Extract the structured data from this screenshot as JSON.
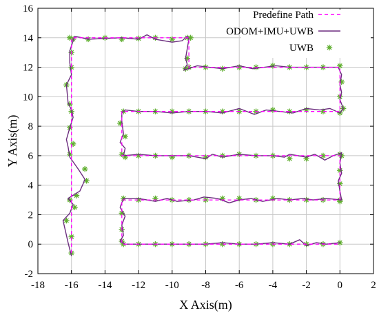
{
  "chart_data": {
    "type": "scatter",
    "xlabel": "X Axis(m)",
    "ylabel": "Y Axis(m)",
    "xlim": [
      -18,
      2
    ],
    "ylim": [
      -2,
      16
    ],
    "xticks": [
      "-18",
      "-16",
      "-14",
      "-12",
      "-10",
      "-8",
      "-6",
      "-4",
      "-2",
      "0",
      "2"
    ],
    "yticks": [
      "-2",
      "0",
      "2",
      "4",
      "6",
      "8",
      "10",
      "12",
      "14",
      "16"
    ],
    "grid": true,
    "legend_position": "top-right",
    "series": [
      {
        "name": "Predefine Path",
        "style": "dashed-line",
        "color": "#ff00ff",
        "points": [
          [
            -16,
            -0.6
          ],
          [
            -16,
            14
          ],
          [
            -9,
            14
          ],
          [
            -9,
            12
          ],
          [
            0,
            12
          ],
          [
            0,
            9
          ],
          [
            -13,
            9
          ],
          [
            -13,
            6
          ],
          [
            0,
            6
          ],
          [
            0,
            3
          ],
          [
            -13,
            3
          ],
          [
            -13,
            0
          ],
          [
            0,
            0
          ]
        ]
      },
      {
        "name": "ODOM+IMU+UWB",
        "style": "line",
        "color": "#6b2c7e",
        "points": [
          [
            -16,
            -0.8
          ],
          [
            -16.2,
            0.1
          ],
          [
            -16.3,
            0.6
          ],
          [
            -16.5,
            1.6
          ],
          [
            -16.1,
            2.1
          ],
          [
            -15.9,
            2.7
          ],
          [
            -16.2,
            3.1
          ],
          [
            -15.5,
            3.6
          ],
          [
            -15.3,
            4.1
          ],
          [
            -15.2,
            4.4
          ],
          [
            -15.6,
            5.1
          ],
          [
            -16.1,
            5.9
          ],
          [
            -16.2,
            6.6
          ],
          [
            -16.3,
            7.1
          ],
          [
            -16.1,
            7.9
          ],
          [
            -15.9,
            8.6
          ],
          [
            -16,
            9.1
          ],
          [
            -16.2,
            9.6
          ],
          [
            -16.3,
            10.8
          ],
          [
            -16,
            11.5
          ],
          [
            -16.1,
            12.3
          ],
          [
            -16.1,
            13.1
          ],
          [
            -15.9,
            13.8
          ],
          [
            -15.8,
            14.1
          ],
          [
            -15,
            13.9
          ],
          [
            -14,
            13.95
          ],
          [
            -13,
            14
          ],
          [
            -12,
            13.9
          ],
          [
            -11.5,
            14.2
          ],
          [
            -11,
            13.9
          ],
          [
            -10,
            13.7
          ],
          [
            -9.4,
            13.8
          ],
          [
            -9.1,
            14.1
          ],
          [
            -9,
            13.9
          ],
          [
            -9.2,
            12.6
          ],
          [
            -9.1,
            12.2
          ],
          [
            -9.3,
            11.8
          ],
          [
            -8.5,
            12.1
          ],
          [
            -7.8,
            12
          ],
          [
            -7,
            11.9
          ],
          [
            -6,
            12.1
          ],
          [
            -5.2,
            11.9
          ],
          [
            -4.5,
            12
          ],
          [
            -3.8,
            12.1
          ],
          [
            -3,
            12
          ],
          [
            -2,
            12
          ],
          [
            -1,
            12
          ],
          [
            -0.1,
            12
          ],
          [
            0.1,
            11.5
          ],
          [
            0,
            10.8
          ],
          [
            0.1,
            10.3
          ],
          [
            0,
            9.8
          ],
          [
            0.2,
            9.2
          ],
          [
            0,
            8.9
          ],
          [
            -0.6,
            9.2
          ],
          [
            -1.2,
            9.1
          ],
          [
            -2,
            9.2
          ],
          [
            -2.8,
            8.9
          ],
          [
            -3.6,
            9
          ],
          [
            -4.4,
            9.1
          ],
          [
            -5.1,
            8.8
          ],
          [
            -6,
            9.2
          ],
          [
            -7,
            8.9
          ],
          [
            -8,
            9
          ],
          [
            -9,
            9
          ],
          [
            -10,
            8.9
          ],
          [
            -11,
            9
          ],
          [
            -12,
            9
          ],
          [
            -12.8,
            9.1
          ],
          [
            -13,
            8.9
          ],
          [
            -13,
            8.3
          ],
          [
            -12.9,
            7.5
          ],
          [
            -13.1,
            6.9
          ],
          [
            -12.8,
            6.5
          ],
          [
            -12.9,
            6
          ],
          [
            -12,
            6.1
          ],
          [
            -11,
            6
          ],
          [
            -10,
            6
          ],
          [
            -9,
            6
          ],
          [
            -8,
            5.8
          ],
          [
            -7.6,
            6.1
          ],
          [
            -7,
            5.9
          ],
          [
            -6,
            6.1
          ],
          [
            -5,
            6
          ],
          [
            -4,
            6
          ],
          [
            -3.3,
            5.9
          ],
          [
            -3,
            6.1
          ],
          [
            -2,
            5.9
          ],
          [
            -1.5,
            6.1
          ],
          [
            -0.9,
            5.7
          ],
          [
            -0.4,
            6
          ],
          [
            0.1,
            6.2
          ],
          [
            0,
            5.5
          ],
          [
            0.1,
            4.8
          ],
          [
            -0.1,
            4.3
          ],
          [
            0,
            3.6
          ],
          [
            0.1,
            3
          ],
          [
            -0.8,
            3.1
          ],
          [
            -1.6,
            3
          ],
          [
            -2.2,
            3.1
          ],
          [
            -3,
            3
          ],
          [
            -3.7,
            3.1
          ],
          [
            -4.6,
            2.9
          ],
          [
            -5.3,
            3.1
          ],
          [
            -6,
            3
          ],
          [
            -6.6,
            2.8
          ],
          [
            -7.3,
            3.1
          ],
          [
            -8.1,
            3.2
          ],
          [
            -8.7,
            3
          ],
          [
            -9.7,
            2.9
          ],
          [
            -10.3,
            3.1
          ],
          [
            -11,
            2.9
          ],
          [
            -11.5,
            3
          ],
          [
            -12,
            3.1
          ],
          [
            -12.9,
            3.1
          ],
          [
            -13.1,
            2.5
          ],
          [
            -12.8,
            1.9
          ],
          [
            -13,
            1.3
          ],
          [
            -12.9,
            0.6
          ],
          [
            -13.1,
            0.2
          ],
          [
            -12.8,
            0
          ],
          [
            -12,
            0
          ],
          [
            -11,
            0
          ],
          [
            -10,
            0
          ],
          [
            -9,
            0
          ],
          [
            -8,
            0
          ],
          [
            -7,
            0.1
          ],
          [
            -6,
            0
          ],
          [
            -5,
            0
          ],
          [
            -4,
            0.1
          ],
          [
            -3,
            0
          ],
          [
            -2.4,
            0.3
          ],
          [
            -2,
            -0.1
          ],
          [
            -1.4,
            0.1
          ],
          [
            -0.8,
            0
          ],
          [
            0,
            0.1
          ]
        ]
      },
      {
        "name": "UWB",
        "style": "markers",
        "marker": "asterisk",
        "color": "#5fae2e",
        "points": [
          [
            -16,
            -0.6
          ],
          [
            -16,
            0.5
          ],
          [
            -16.3,
            1.6
          ],
          [
            -15.8,
            2.5
          ],
          [
            -15.7,
            3.3
          ],
          [
            -15.2,
            5.1
          ],
          [
            -15.1,
            4.3
          ],
          [
            -16.1,
            3
          ],
          [
            -16.1,
            6.1
          ],
          [
            -15.9,
            6.8
          ],
          [
            -16.1,
            7.9
          ],
          [
            -16,
            9
          ],
          [
            -16.1,
            9.5
          ],
          [
            -16.3,
            10.8
          ],
          [
            -16,
            12
          ],
          [
            -16,
            13
          ],
          [
            -16.1,
            14
          ],
          [
            -15.9,
            13.9
          ],
          [
            -15,
            13.9
          ],
          [
            -14,
            14
          ],
          [
            -13,
            13.9
          ],
          [
            -12,
            13.95
          ],
          [
            -11,
            14
          ],
          [
            -10,
            13.9
          ],
          [
            -9.1,
            14
          ],
          [
            -8.9,
            14
          ],
          [
            -9.1,
            12.6
          ],
          [
            -9.2,
            11.9
          ],
          [
            -9,
            12
          ],
          [
            -8,
            12
          ],
          [
            -7,
            11.9
          ],
          [
            -6,
            12
          ],
          [
            -5,
            12
          ],
          [
            -4,
            12.1
          ],
          [
            -3,
            12
          ],
          [
            -2,
            12
          ],
          [
            -1,
            12
          ],
          [
            0,
            12.1
          ],
          [
            0.1,
            11
          ],
          [
            0,
            10
          ],
          [
            0.2,
            9.2
          ],
          [
            0,
            8.9
          ],
          [
            -1,
            9
          ],
          [
            -2,
            9.1
          ],
          [
            -3,
            9
          ],
          [
            -4,
            9.1
          ],
          [
            -5,
            9
          ],
          [
            -6,
            9
          ],
          [
            -7,
            9
          ],
          [
            -8,
            9
          ],
          [
            -9,
            9
          ],
          [
            -10,
            9
          ],
          [
            -11,
            9
          ],
          [
            -12,
            9
          ],
          [
            -12.9,
            9
          ],
          [
            -13.1,
            8.2
          ],
          [
            -12.8,
            7.3
          ],
          [
            -13,
            6.1
          ],
          [
            -12.8,
            5.9
          ],
          [
            -12,
            6
          ],
          [
            -11,
            6
          ],
          [
            -10,
            5.9
          ],
          [
            -9,
            6
          ],
          [
            -8,
            5.9
          ],
          [
            -7,
            6
          ],
          [
            -6,
            6.1
          ],
          [
            -5,
            6
          ],
          [
            -4,
            6
          ],
          [
            -3,
            5.8
          ],
          [
            -2,
            5.8
          ],
          [
            -1,
            6
          ],
          [
            0,
            6.1
          ],
          [
            0.1,
            6
          ],
          [
            0,
            5
          ],
          [
            0,
            4.1
          ],
          [
            0,
            3
          ],
          [
            0,
            2.9
          ],
          [
            -1,
            3
          ],
          [
            -2,
            3
          ],
          [
            -3,
            3
          ],
          [
            -4,
            3.1
          ],
          [
            -5,
            3
          ],
          [
            -6,
            3.1
          ],
          [
            -7,
            3.1
          ],
          [
            -8,
            3
          ],
          [
            -9,
            3
          ],
          [
            -10,
            3
          ],
          [
            -11,
            3.1
          ],
          [
            -12,
            3
          ],
          [
            -12.9,
            3.1
          ],
          [
            -13,
            2.1
          ],
          [
            -13,
            1
          ],
          [
            -13,
            0.2
          ],
          [
            -12.9,
            0
          ],
          [
            -12,
            0
          ],
          [
            -11,
            0
          ],
          [
            -10,
            0
          ],
          [
            -9,
            0
          ],
          [
            -8,
            0
          ],
          [
            -7,
            0
          ],
          [
            -6,
            0
          ],
          [
            -5,
            0
          ],
          [
            -4,
            0
          ],
          [
            -3,
            0
          ],
          [
            -2,
            0
          ],
          [
            -1,
            0
          ],
          [
            0,
            0.1
          ]
        ]
      }
    ]
  }
}
